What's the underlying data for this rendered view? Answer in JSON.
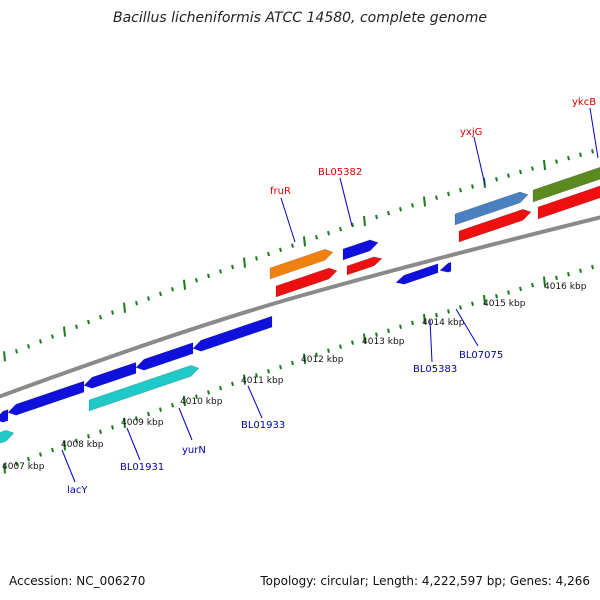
{
  "title": "Bacillus licheniformis ATCC 14580, complete genome",
  "footer": {
    "accession": "Accession: NC_006270",
    "summary": "Topology: circular; Length: 4,222,597 bp; Genes: 4,266"
  },
  "scale": {
    "tick_labels": [
      "4007 kbp",
      "4008 kbp",
      "4009 kbp",
      "4010 kbp",
      "4011 kbp",
      "4012 kbp",
      "4013 kbp",
      "4014 kbp",
      "4015 kbp",
      "4016 kbp"
    ]
  },
  "gene_labels": {
    "forward": [
      "fruR",
      "BL05382",
      "yxjG",
      "ykcB"
    ],
    "reverse": [
      "lacY",
      "BL01931",
      "yurN",
      "BL01933",
      "BL05383",
      "BL07075"
    ]
  },
  "colors": {
    "backbone": "#888888",
    "tick": "#1a7a1a",
    "forward_label": "#d40000",
    "reverse_label": "#0000aa",
    "gene_blue": "#1010dd",
    "gene_cyan": "#20c8c8",
    "gene_red": "#ee1010",
    "gene_orange": "#f08010",
    "gene_steelblue": "#4a80c0",
    "gene_olive": "#5a8a20"
  }
}
